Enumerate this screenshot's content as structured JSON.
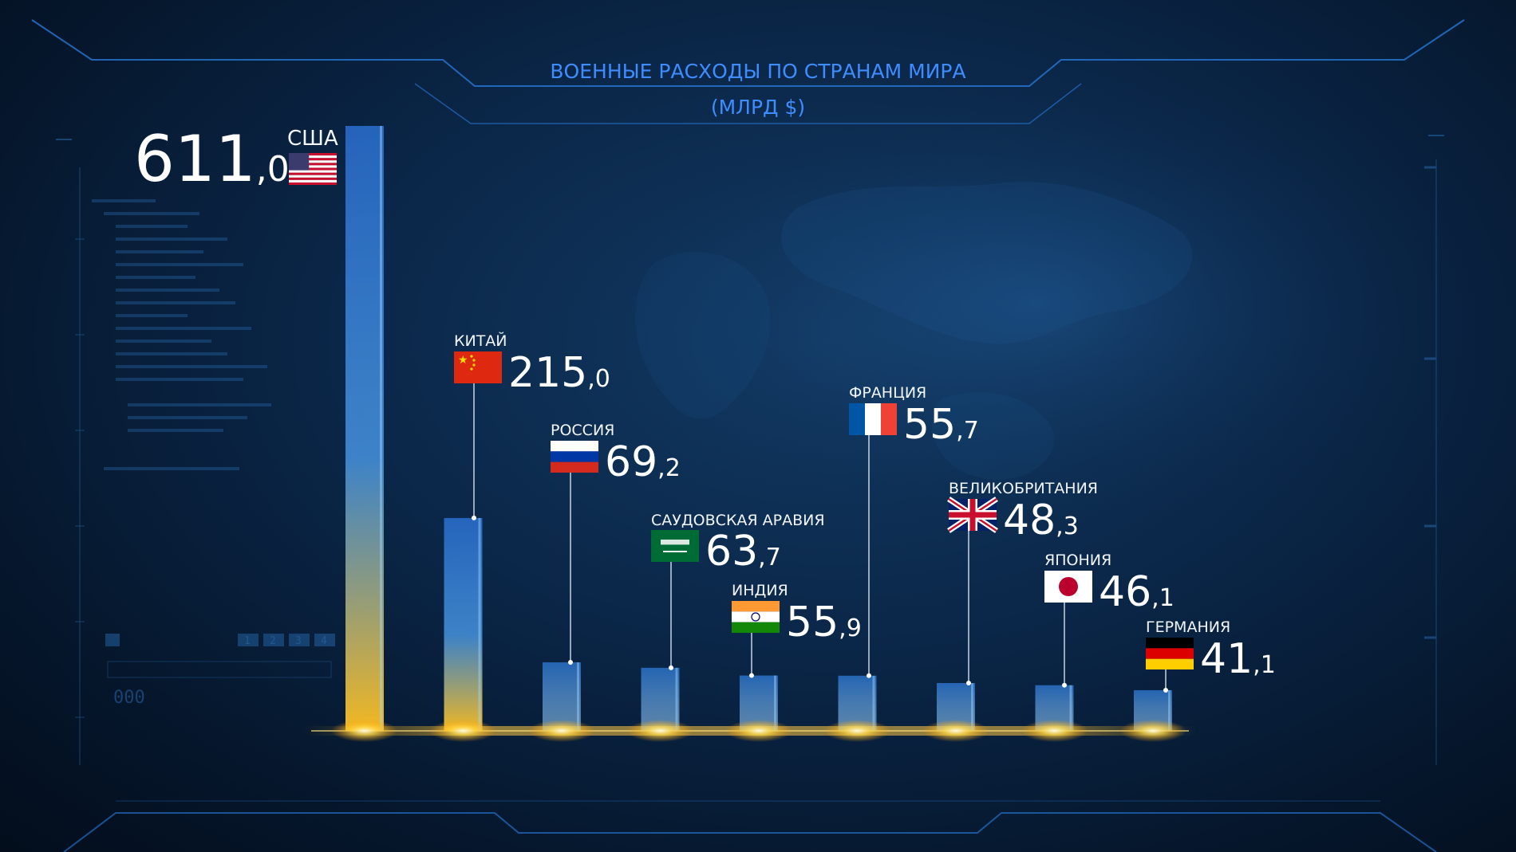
{
  "chart_data": {
    "type": "bar",
    "title": "ВОЕННЫЕ РАСХОДЫ ПО СТРАНАМ МИРА",
    "subtitle": "(МЛРД $)",
    "categories": [
      "США",
      "КИТАЙ",
      "РОССИЯ",
      "САУДОВСКАЯ АРАВИЯ",
      "ИНДИЯ",
      "ФРАНЦИЯ",
      "ВЕЛИКОБРИТАНИЯ",
      "ЯПОНИЯ",
      "ГЕРМАНИЯ"
    ],
    "values": [
      611.0,
      215.0,
      69.2,
      63.7,
      55.9,
      55.7,
      48.3,
      46.1,
      41.1
    ],
    "value_labels": [
      {
        "int": "611",
        "dec": ",0"
      },
      {
        "int": "215",
        "dec": ",0"
      },
      {
        "int": "69",
        "dec": ",2"
      },
      {
        "int": "63",
        "dec": ",7"
      },
      {
        "int": "55",
        "dec": ",9"
      },
      {
        "int": "55",
        "dec": ",7"
      },
      {
        "int": "48",
        "dec": ",3"
      },
      {
        "int": "46",
        "dec": ",1"
      },
      {
        "int": "41",
        "dec": ",1"
      }
    ],
    "flags": [
      "usa-flag",
      "china-flag",
      "russia-flag",
      "saudi-arabia-flag",
      "india-flag",
      "france-flag",
      "uk-flag",
      "japan-flag",
      "germany-flag"
    ],
    "ylim": [
      0,
      611
    ],
    "grid": false,
    "legend": "none"
  },
  "colors": {
    "title": "#3f8cff",
    "bar_top": "#2a6fd0",
    "bar_bottom": "#ffc020",
    "glow": "#ffd84a",
    "frame": "#2a7de0",
    "background": "#0a2546"
  },
  "decor": {
    "tab_numbers": [
      "1",
      "2",
      "3",
      "4"
    ],
    "counter": "000"
  }
}
